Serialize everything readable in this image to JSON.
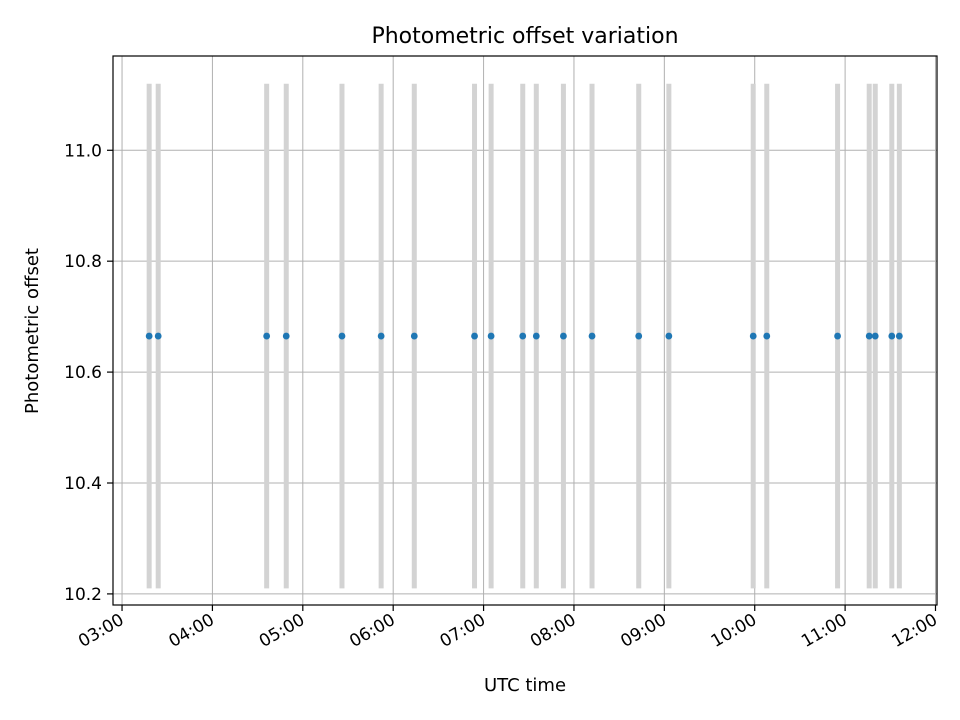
{
  "chart_data": {
    "type": "scatter",
    "title": "Photometric offset variation",
    "xlabel": "UTC time",
    "ylabel": "Photometric offset",
    "xlim": [
      "02:54",
      "12:01"
    ],
    "ylim": [
      10.18,
      11.17
    ],
    "x_tick_labels": [
      "03:00",
      "04:00",
      "05:00",
      "06:00",
      "07:00",
      "08:00",
      "09:00",
      "10:00",
      "11:00",
      "12:00"
    ],
    "y_ticks": [
      10.2,
      10.4,
      10.6,
      10.8,
      11.0
    ],
    "y_tick_labels": [
      "10.2",
      "10.4",
      "10.6",
      "10.8",
      "11.0"
    ],
    "grid": true,
    "colors": {
      "points": "#1f77b4",
      "bars": "#d3d3d3",
      "grid": "#b0b0b0"
    },
    "series": [
      {
        "x": [
          "03:18",
          "03:24",
          "04:36",
          "04:49",
          "05:26",
          "05:52",
          "06:14",
          "06:54",
          "07:05",
          "07:26",
          "07:35",
          "07:53",
          "08:12",
          "08:43",
          "09:03",
          "09:59",
          "10:08",
          "10:55",
          "11:16",
          "11:20",
          "11:31",
          "11:36"
        ],
        "y": [
          10.665,
          10.665,
          10.665,
          10.665,
          10.665,
          10.665,
          10.665,
          10.665,
          10.665,
          10.665,
          10.665,
          10.665,
          10.665,
          10.665,
          10.665,
          10.665,
          10.665,
          10.665,
          10.665,
          10.665,
          10.665,
          10.665
        ],
        "vertical_bar_range": [
          10.21,
          11.12
        ]
      }
    ]
  }
}
